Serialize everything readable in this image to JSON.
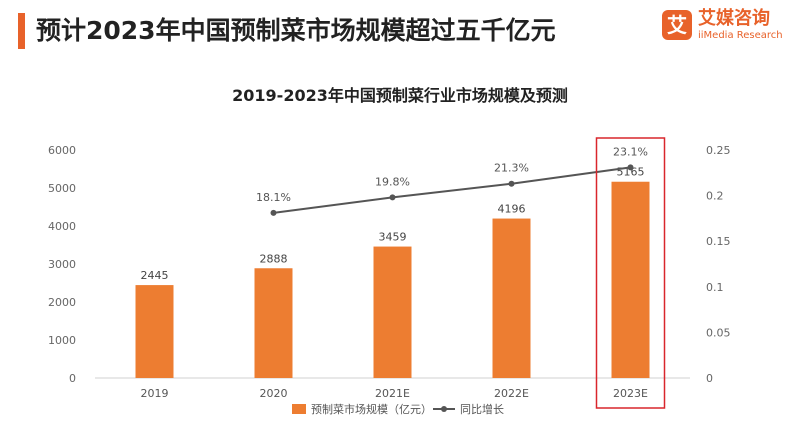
{
  "page": {
    "title": "预计2023年中国预制菜市场规模超过五千亿元"
  },
  "logo": {
    "mark": "艾",
    "name_cn": "艾媒咨询",
    "name_en": "iiMedia Research"
  },
  "colors": {
    "accent": "#e8622a",
    "bar": "#ed7d31",
    "line": "#555555",
    "highlight_box": "#d9262c"
  },
  "chart_data": {
    "type": "bar",
    "title": "2019-2023年中国预制菜行业市场规模及预测",
    "categories": [
      "2019",
      "2020",
      "2021E",
      "2022E",
      "2023E"
    ],
    "series": [
      {
        "name": "预制菜市场规模（亿元）",
        "type": "bar",
        "axis": "left",
        "values": [
          2445,
          2888,
          3459,
          4196,
          5165
        ],
        "labels": [
          "2445",
          "2888",
          "3459",
          "4196",
          "5165"
        ]
      },
      {
        "name": "同比增长",
        "type": "line",
        "axis": "right",
        "values": [
          null,
          0.181,
          0.198,
          0.213,
          0.231
        ],
        "labels": [
          "",
          "18.1%",
          "19.8%",
          "21.3%",
          "23.1%"
        ]
      }
    ],
    "y_left": {
      "ylim": [
        0,
        6000
      ],
      "ticks": [
        "0",
        "1000",
        "2000",
        "3000",
        "4000",
        "5000",
        "6000"
      ]
    },
    "y_right": {
      "ylim": [
        0,
        0.25
      ],
      "ticks": [
        "0",
        "0.05",
        "0.1",
        "0.15",
        "0.2",
        "0.25"
      ]
    },
    "highlighted_category": "2023E",
    "legend_position": "bottom",
    "grid": false
  }
}
